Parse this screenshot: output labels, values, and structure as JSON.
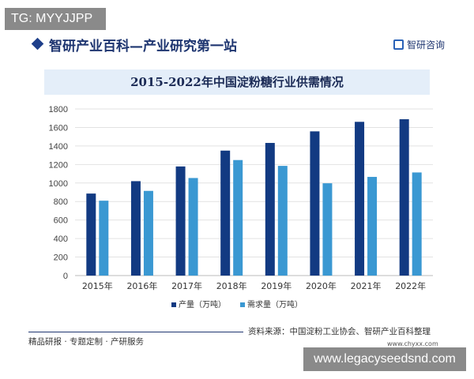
{
  "tg_label": "TG: MYYJJPP",
  "header": {
    "title": "智研产业百科—产业研究第一站",
    "logo_text": "智研咨询"
  },
  "chart_data": {
    "type": "bar",
    "title": "2015-2022年中国淀粉糖行业供需情况",
    "categories": [
      "2015年",
      "2016年",
      "2017年",
      "2018年",
      "2019年",
      "2020年",
      "2021年",
      "2022年"
    ],
    "series": [
      {
        "name": "产量（万吨）",
        "color": "#123a82",
        "values": [
          886,
          1020,
          1179,
          1350,
          1433,
          1558,
          1661,
          1689
        ]
      },
      {
        "name": "需求量（万吨）",
        "color": "#3a98d2",
        "values": [
          809,
          915,
          1054,
          1248,
          1185,
          997,
          1066,
          1114
        ]
      }
    ],
    "ylim": [
      0,
      1800
    ],
    "yticks": [
      "0",
      "200",
      "400",
      "600",
      "800",
      "1000",
      "1200",
      "1400",
      "1600",
      "1800"
    ],
    "grid": true,
    "legend": "bottom"
  },
  "footer": {
    "source": "资料来源：中国淀粉工业协会、智研产业百科整理",
    "url": "www.chyxx.com",
    "slogan": "精品研报 · 专题定制 · 产研服务"
  },
  "watermark": "www.legacyseedsnd.com"
}
